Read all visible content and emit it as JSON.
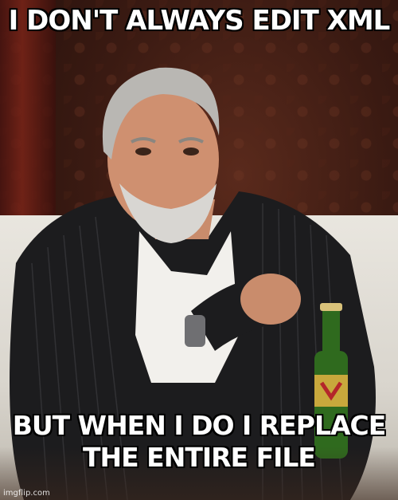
{
  "meme": {
    "top_text": "I DON'T ALWAYS EDIT XML",
    "bottom_text": "BUT WHEN I DO I REPLACE THE ENTIRE FILE",
    "watermark": "imgflip.com"
  },
  "colors": {
    "text_fill": "#ffffff",
    "text_outline": "#000000",
    "background_wall": "#3a1a12",
    "jacket": "#1a1a1a",
    "sofa": "#e4e0d8",
    "bottle": "#2f6a1e"
  }
}
